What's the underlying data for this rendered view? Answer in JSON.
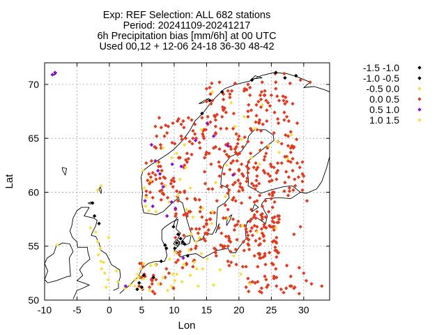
{
  "chart_data": {
    "type": "scatter",
    "title_lines": [
      "Exp: REF   Selection: ALL    682 stations",
      "Period: 20241109-20241217",
      "6h Precipitation bias [mm/6h] at  00 UTC",
      "Used 00,12 + 12-06 24-18 36-30 48-42"
    ],
    "xlabel": "Lon",
    "ylabel": "Lat",
    "xlim": [
      -10,
      34
    ],
    "ylim": [
      50,
      72
    ],
    "xticks": [
      "-10",
      "-5",
      "0",
      "5",
      "10",
      "15",
      "20",
      "25",
      "30"
    ],
    "yticks": [
      "50",
      "55",
      "60",
      "65",
      "70"
    ],
    "grid": true,
    "legend_position": "outside-right",
    "series": [
      {
        "name": "-1.5 -1.0",
        "color": "#000000",
        "points": [
          [
            5.0,
            51.2
          ],
          [
            8.8,
            54.8
          ],
          [
            11.3,
            55.4
          ],
          [
            9.9,
            56.8
          ],
          [
            -1.6,
            57.1
          ]
        ]
      },
      {
        "name": "-1.0 -0.5",
        "color": "#000000",
        "points": [
          [
            4.6,
            51.6
          ],
          [
            5.3,
            52.3
          ],
          [
            6.8,
            52.1
          ],
          [
            8.0,
            53.6
          ],
          [
            8.6,
            55.1
          ],
          [
            10.1,
            54.8
          ],
          [
            11.6,
            55.2
          ],
          [
            12.1,
            54.1
          ],
          [
            10.6,
            56.1
          ],
          [
            11.0,
            55.7
          ],
          [
            10.4,
            55.3
          ],
          [
            -2.3,
            57.8
          ],
          [
            -2.6,
            59.0
          ],
          [
            14.3,
            67.3
          ],
          [
            15.5,
            68.5
          ],
          [
            17.4,
            69.3
          ],
          [
            25.7,
            71.1
          ],
          [
            28.8,
            70.8
          ],
          [
            22.0,
            70.4
          ],
          [
            27.1,
            70.6
          ],
          [
            4.3,
            51.0
          ]
        ]
      },
      {
        "name": "-0.5 0.0",
        "color": "#f5e04a",
        "points": [
          [
            3.2,
            51.4
          ],
          [
            4.0,
            51.9
          ],
          [
            4.4,
            52.4
          ],
          [
            4.8,
            52.9
          ],
          [
            5.3,
            53.4
          ],
          [
            6.4,
            53.2
          ],
          [
            7.1,
            53.3
          ],
          [
            5.0,
            51.1
          ],
          [
            3.9,
            51.3
          ],
          [
            -0.2,
            51.9
          ],
          [
            -0.7,
            52.5
          ],
          [
            -1.3,
            53.6
          ],
          [
            -1.4,
            54.8
          ],
          [
            -2.1,
            56.3
          ],
          [
            -1.2,
            52.9
          ],
          [
            -0.5,
            51.2
          ],
          [
            1.3,
            51.7
          ],
          [
            8.3,
            52.1
          ],
          [
            9.6,
            51.3
          ],
          [
            10.4,
            52.4
          ],
          [
            11.2,
            51.7
          ],
          [
            12.5,
            52.3
          ],
          [
            13.7,
            51.3
          ],
          [
            14.4,
            52.9
          ],
          [
            13.1,
            53.5
          ],
          [
            12.3,
            54.6
          ],
          [
            14.2,
            54.3
          ],
          [
            11.5,
            53.3
          ],
          [
            9.3,
            53.8
          ],
          [
            10.2,
            54.4
          ],
          [
            13.4,
            55.4
          ],
          [
            12.6,
            56.1
          ],
          [
            12.9,
            57.7
          ],
          [
            14.4,
            58.5
          ],
          [
            15.8,
            57.1
          ],
          [
            11.9,
            58.4
          ],
          [
            10.6,
            59.7
          ],
          [
            9.2,
            59.1
          ],
          [
            7.2,
            58.2
          ],
          [
            5.6,
            58.7
          ],
          [
            5.7,
            59.5
          ],
          [
            5.4,
            60.4
          ],
          [
            6.4,
            61.1
          ],
          [
            5.2,
            62.0
          ],
          [
            7.9,
            61.8
          ],
          [
            8.7,
            60.6
          ],
          [
            10.9,
            61.2
          ],
          [
            11.8,
            62.3
          ],
          [
            12.5,
            60.4
          ],
          [
            7.3,
            62.7
          ],
          [
            9.6,
            63.2
          ],
          [
            10.4,
            63.6
          ],
          [
            11.6,
            64.4
          ],
          [
            14.2,
            65.8
          ],
          [
            18.8,
            68.3
          ],
          [
            19.4,
            66.1
          ],
          [
            20.8,
            67.0
          ],
          [
            22.5,
            65.9
          ],
          [
            24.6,
            64.3
          ],
          [
            25.9,
            64.7
          ],
          [
            28.1,
            65.3
          ],
          [
            26.2,
            63.7
          ],
          [
            23.2,
            62.6
          ],
          [
            21.9,
            63.2
          ],
          [
            20.4,
            64.9
          ],
          [
            18.1,
            62.5
          ],
          [
            16.4,
            60.9
          ],
          [
            17.9,
            59.6
          ],
          [
            15.9,
            58.2
          ],
          [
            18.3,
            57.6
          ],
          [
            20.5,
            56.9
          ],
          [
            22.8,
            56.3
          ],
          [
            25.7,
            56.7
          ],
          [
            19.2,
            54.1
          ],
          [
            17.1,
            52.8
          ],
          [
            20.3,
            52.4
          ],
          [
            16.1,
            51.4
          ],
          [
            21.7,
            51.5
          ],
          [
            15.1,
            53.8
          ],
          [
            13.5,
            52.9
          ],
          [
            9.0,
            50.9
          ],
          [
            7.6,
            51.5
          ],
          [
            6.2,
            50.9
          ],
          [
            2.4,
            51.1
          ],
          [
            -0.9,
            53.5
          ],
          [
            -1.7,
            54.2
          ],
          [
            -0.1,
            55.8
          ],
          [
            -8.1,
            55.1
          ]
        ]
      },
      {
        "name": "0.0 0.5",
        "color": "#e03a1f",
        "points": []
      },
      {
        "name": "0.5 1.0",
        "color": "#8a0fd8",
        "points": [
          [
            -8.8,
            70.9
          ],
          [
            -8.4,
            71.1
          ],
          [
            2.5,
            51.3
          ],
          [
            5.5,
            59.2
          ],
          [
            6.7,
            58.7
          ],
          [
            9.6,
            59.1
          ],
          [
            8.3,
            60.5
          ],
          [
            11.1,
            62.4
          ],
          [
            9.7,
            62.6
          ],
          [
            7.5,
            62.0
          ],
          [
            6.5,
            64.4
          ],
          [
            7.1,
            62.9
          ],
          [
            13.3,
            64.8
          ],
          [
            15.1,
            66.4
          ],
          [
            18.3,
            64.3
          ],
          [
            7.8,
            61.7
          ],
          [
            8.9,
            57.8
          ],
          [
            10.2,
            58.5
          ],
          [
            11.4,
            53.9
          ],
          [
            16.1,
            65.2
          ],
          [
            19.1,
            61.6
          ]
        ]
      },
      {
        "name": "1.0 1.5",
        "color": "#f5e04a",
        "points": [
          [
            5.3,
            52.0
          ],
          [
            4.5,
            52.1
          ],
          [
            9.8,
            52.4
          ],
          [
            -1.8,
            55.4
          ],
          [
            1.1,
            52.7
          ],
          [
            -2.9,
            56.7
          ],
          [
            13.9,
            55.8
          ],
          [
            6.1,
            58.3
          ],
          [
            8.3,
            64.1
          ],
          [
            23.6,
            68.1
          ],
          [
            15.9,
            69.3
          ],
          [
            27.5,
            63.1
          ],
          [
            -1.3,
            60.6
          ],
          [
            -1.8,
            60.2
          ],
          [
            10.1,
            51.8
          ]
        ]
      }
    ]
  }
}
